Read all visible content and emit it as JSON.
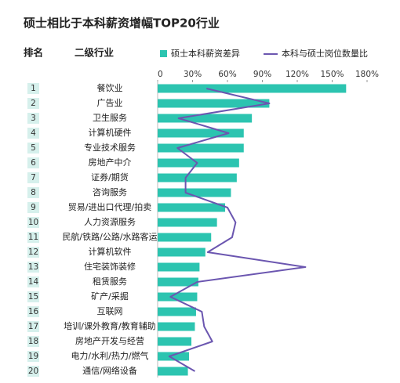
{
  "chart_data": {
    "type": "bar-line",
    "title": "硕士相比于本科薪资增幅TOP20行业",
    "rank_header": "排名",
    "category_header": "二级行业",
    "ranks": [
      1,
      2,
      3,
      4,
      5,
      6,
      7,
      8,
      9,
      10,
      11,
      12,
      13,
      14,
      15,
      16,
      17,
      18,
      19,
      20
    ],
    "categories": [
      "餐饮业",
      "广告业",
      "卫生服务",
      "计算机硬件",
      "专业技术服务",
      "房地产中介",
      "证券/期货",
      "咨询服务",
      "贸易/进出口代理/拍卖",
      "人力资源服务",
      "民航/铁路/公路/水路客运",
      "计算机软件",
      "住宅装饰装修",
      "租赁服务",
      "矿产/采掘",
      "互联网",
      "培训/课外教育/教育辅助",
      "房地产开发与经营",
      "电力/水利/热力/燃气",
      "通信/网络设备"
    ],
    "series": [
      {
        "name": "硕士本科薪资差异",
        "color": "#2cc4b0",
        "kind": "bar",
        "values": [
          162,
          96,
          81,
          74,
          74,
          70,
          68,
          63,
          58,
          51,
          46,
          41,
          36,
          35,
          34,
          33,
          32,
          29,
          27,
          26
        ]
      },
      {
        "name": "本科与硕士岗位数量比",
        "color": "#6b56b0",
        "kind": "line",
        "values": [
          42,
          96,
          18,
          61,
          17,
          34,
          24,
          24,
          60,
          67,
          64,
          43,
          127,
          34,
          11,
          38,
          40,
          47,
          10,
          32
        ]
      }
    ],
    "xlim": [
      0,
      180
    ],
    "xticks": [
      0,
      {
        "value": 30,
        "label": "30%"
      },
      {
        "value": 60,
        "label": "60%"
      },
      {
        "value": 90,
        "label": "90%"
      },
      {
        "value": 120,
        "label": "120%"
      },
      {
        "value": 150,
        "label": "150%"
      },
      {
        "value": 180,
        "label": "180%"
      }
    ],
    "grid": false
  }
}
